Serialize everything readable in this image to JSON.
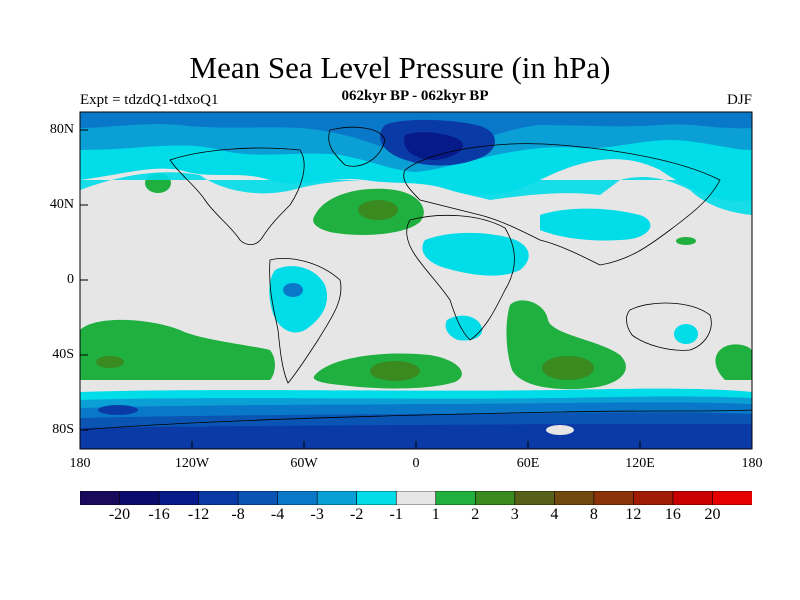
{
  "chart_data": {
    "type": "heatmap",
    "title": "Mean Sea Level Pressure (in hPa)",
    "subtitle": "062kyr BP - 062kyr BP",
    "experiment": "Expt = tdzdQ1-tdxoQ1",
    "season": "DJF",
    "y_ticks": [
      "80N",
      "40N",
      "0",
      "40S",
      "80S"
    ],
    "x_ticks": [
      "180",
      "120W",
      "60W",
      "0",
      "60E",
      "120E",
      "180"
    ],
    "colorbar": {
      "labels": [
        "-20",
        "-16",
        "-12",
        "-8",
        "-4",
        "-3",
        "-2",
        "-1",
        "1",
        "2",
        "3",
        "4",
        "8",
        "12",
        "16",
        "20"
      ],
      "colors": [
        "#1a0a5c",
        "#0b0b6e",
        "#061a8a",
        "#0a3aa6",
        "#0a55b4",
        "#0a78c8",
        "#0aa0d6",
        "#00dce8",
        "#e6e6e6",
        "#1fb040",
        "#3a8a20",
        "#566018",
        "#704a10",
        "#8a3208",
        "#a01c04",
        "#c80000",
        "#e60000"
      ]
    },
    "features": [
      {
        "name": "arctic-low",
        "level": "-12"
      },
      {
        "name": "north-atlantic-high",
        "level": "3"
      },
      {
        "name": "south-atlantic-high",
        "level": "3"
      },
      {
        "name": "south-indian-high",
        "level": "3"
      },
      {
        "name": "southern-ocean-low",
        "level": "-12"
      }
    ]
  }
}
